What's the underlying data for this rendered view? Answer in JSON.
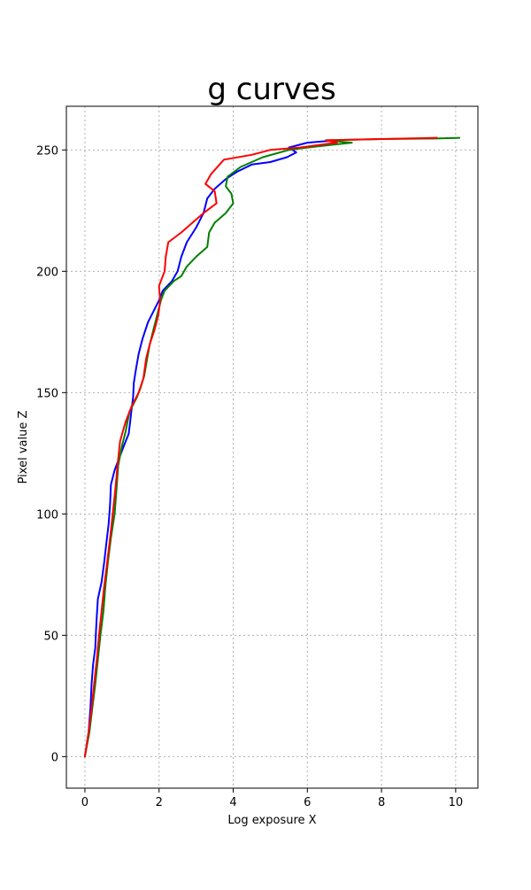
{
  "chart_data": {
    "type": "line",
    "title": "g curves",
    "xlabel": "Log exposure X",
    "ylabel": "Pixel value Z",
    "xlim": [
      -0.5,
      10.6
    ],
    "ylim": [
      -13,
      268
    ],
    "xticks": [
      0,
      2,
      4,
      6,
      8,
      10
    ],
    "yticks": [
      0,
      50,
      100,
      150,
      200,
      250
    ],
    "grid": true,
    "grid_style": "dotted",
    "series": [
      {
        "color": "#0000ff",
        "points": [
          [
            0,
            0
          ],
          [
            0.1,
            10
          ],
          [
            0.15,
            20
          ],
          [
            0.18,
            30
          ],
          [
            0.22,
            38
          ],
          [
            0.28,
            45
          ],
          [
            0.3,
            52
          ],
          [
            0.32,
            58
          ],
          [
            0.35,
            65
          ],
          [
            0.45,
            72
          ],
          [
            0.52,
            80
          ],
          [
            0.58,
            88
          ],
          [
            0.64,
            96
          ],
          [
            0.68,
            104
          ],
          [
            0.7,
            112
          ],
          [
            0.8,
            118
          ],
          [
            0.9,
            122
          ],
          [
            1.05,
            128
          ],
          [
            1.18,
            133
          ],
          [
            1.22,
            138
          ],
          [
            1.25,
            142
          ],
          [
            1.3,
            148
          ],
          [
            1.32,
            154
          ],
          [
            1.38,
            160
          ],
          [
            1.45,
            166
          ],
          [
            1.55,
            172
          ],
          [
            1.7,
            179
          ],
          [
            1.9,
            185
          ],
          [
            2.0,
            188
          ],
          [
            2.1,
            192
          ],
          [
            2.35,
            196
          ],
          [
            2.5,
            200
          ],
          [
            2.6,
            206
          ],
          [
            2.75,
            212
          ],
          [
            3.0,
            218
          ],
          [
            3.2,
            224
          ],
          [
            3.3,
            230
          ],
          [
            3.5,
            234
          ],
          [
            3.8,
            238
          ],
          [
            4.1,
            241
          ],
          [
            4.5,
            244
          ],
          [
            5.0,
            245
          ],
          [
            5.45,
            247
          ],
          [
            5.7,
            249
          ],
          [
            5.5,
            251
          ],
          [
            6.0,
            253
          ],
          [
            6.8,
            254
          ]
        ]
      },
      {
        "color": "#008000",
        "points": [
          [
            0,
            0
          ],
          [
            0.12,
            10
          ],
          [
            0.2,
            20
          ],
          [
            0.28,
            30
          ],
          [
            0.35,
            40
          ],
          [
            0.42,
            50
          ],
          [
            0.5,
            60
          ],
          [
            0.55,
            70
          ],
          [
            0.62,
            80
          ],
          [
            0.7,
            90
          ],
          [
            0.8,
            100
          ],
          [
            0.85,
            110
          ],
          [
            0.9,
            120
          ],
          [
            1.0,
            128
          ],
          [
            1.1,
            134
          ],
          [
            1.2,
            142
          ],
          [
            1.4,
            148
          ],
          [
            1.5,
            152
          ],
          [
            1.6,
            157
          ],
          [
            1.68,
            164
          ],
          [
            1.75,
            170
          ],
          [
            1.85,
            176
          ],
          [
            1.95,
            182
          ],
          [
            2.05,
            188
          ],
          [
            2.15,
            192
          ],
          [
            2.4,
            196
          ],
          [
            2.6,
            198
          ],
          [
            2.75,
            202
          ],
          [
            3.0,
            206
          ],
          [
            3.3,
            210
          ],
          [
            3.35,
            216
          ],
          [
            3.5,
            220
          ],
          [
            3.8,
            224
          ],
          [
            4.0,
            228
          ],
          [
            3.95,
            232
          ],
          [
            3.8,
            235
          ],
          [
            3.85,
            239
          ],
          [
            4.2,
            243
          ],
          [
            4.8,
            247
          ],
          [
            5.5,
            250
          ],
          [
            6.0,
            251
          ],
          [
            7.2,
            253
          ],
          [
            6.5,
            254
          ],
          [
            8.0,
            254.5
          ],
          [
            9.5,
            254.7
          ],
          [
            10.1,
            255
          ]
        ]
      },
      {
        "color": "#ff0000",
        "points": [
          [
            0,
            0
          ],
          [
            0.1,
            10
          ],
          [
            0.18,
            20
          ],
          [
            0.25,
            30
          ],
          [
            0.32,
            40
          ],
          [
            0.38,
            50
          ],
          [
            0.45,
            60
          ],
          [
            0.52,
            70
          ],
          [
            0.6,
            80
          ],
          [
            0.68,
            90
          ],
          [
            0.75,
            100
          ],
          [
            0.82,
            110
          ],
          [
            0.88,
            120
          ],
          [
            0.95,
            130
          ],
          [
            1.1,
            138
          ],
          [
            1.25,
            144
          ],
          [
            1.45,
            150
          ],
          [
            1.58,
            156
          ],
          [
            1.65,
            164
          ],
          [
            1.75,
            170
          ],
          [
            1.88,
            176
          ],
          [
            1.98,
            182
          ],
          [
            2.03,
            188
          ],
          [
            2.0,
            194
          ],
          [
            2.15,
            200
          ],
          [
            2.18,
            206
          ],
          [
            2.25,
            212
          ],
          [
            2.6,
            216
          ],
          [
            2.9,
            220
          ],
          [
            3.2,
            224
          ],
          [
            3.55,
            228
          ],
          [
            3.5,
            233
          ],
          [
            3.25,
            236
          ],
          [
            3.4,
            240
          ],
          [
            3.75,
            246
          ],
          [
            4.5,
            248
          ],
          [
            5.0,
            250
          ],
          [
            5.8,
            251
          ],
          [
            6.3,
            252
          ],
          [
            6.8,
            253
          ],
          [
            6.5,
            254
          ],
          [
            8.0,
            254.5
          ],
          [
            9.5,
            255
          ]
        ]
      }
    ]
  }
}
